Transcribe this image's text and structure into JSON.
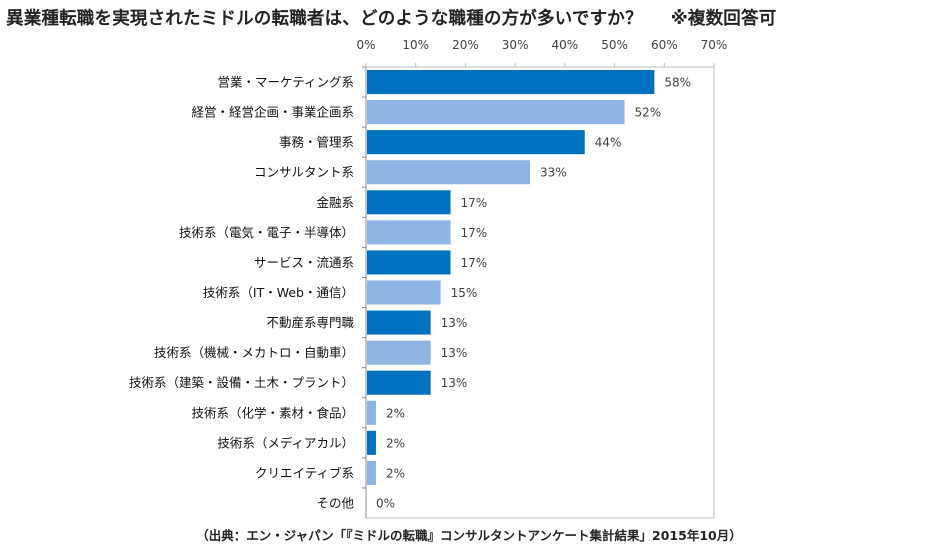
{
  "chart_data": {
    "type": "bar",
    "orientation": "horizontal",
    "title": "異業種転職を実現されたミドルの転職者は、どのような職種の方が多いですか？",
    "title_note": "※複数回答可",
    "xlabel": "",
    "ylabel": "",
    "xlim": [
      0,
      70
    ],
    "tick_values": [
      0,
      10,
      20,
      30,
      40,
      50,
      60,
      70
    ],
    "tick_labels": [
      "0%",
      "10%",
      "20%",
      "30%",
      "40%",
      "50%",
      "60%",
      "70%"
    ],
    "axis_position": "top",
    "grid": false,
    "legend": "none",
    "categories": [
      "営業・マーケティング系",
      "経営・経営企画・事業企画系",
      "事務・管理系",
      "コンサルタント系",
      "金融系",
      "技術系（電気・電子・半導体）",
      "サービス・流通系",
      "技術系（IT・Web・通信）",
      "不動産系専門職",
      "技術系（機械・メカトロ・自動車）",
      "技術系（建築・設備・土木・プラント）",
      "技術系（化学・素材・食品）",
      "技術系（メディアカル）",
      "クリエイティブ系",
      "その他"
    ],
    "values": [
      58,
      52,
      44,
      33,
      17,
      17,
      17,
      15,
      13,
      13,
      13,
      2,
      2,
      2,
      0
    ],
    "value_labels": [
      "58%",
      "52%",
      "44%",
      "33%",
      "17%",
      "17%",
      "17%",
      "15%",
      "13%",
      "13%",
      "13%",
      "2%",
      "2%",
      "2%",
      "0%"
    ],
    "colors": {
      "dark": "#0070c0",
      "light": "#8db4e2",
      "axis": "#bfbfbf",
      "label": "#404040"
    }
  },
  "source": "（出典：エン・ジャパン「『ミドルの転職』コンサルタントアンケート集計結果」2015年10月）"
}
